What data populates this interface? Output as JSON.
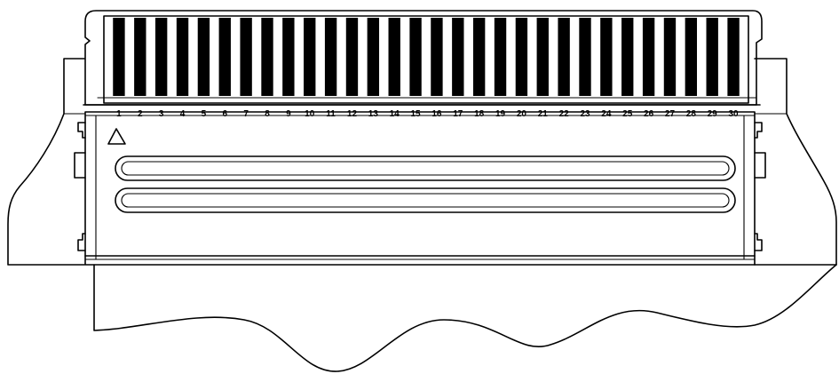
{
  "connector": {
    "pin_numbers": [
      "1",
      "2",
      "3",
      "4",
      "5",
      "6",
      "7",
      "8",
      "9",
      "10",
      "11",
      "12",
      "13",
      "14",
      "15",
      "16",
      "17",
      "18",
      "19",
      "20",
      "21",
      "22",
      "23",
      "24",
      "25",
      "26",
      "27",
      "28",
      "29",
      "30"
    ],
    "pin_count": 30,
    "pin1_marker": "triangle",
    "slot_count": 2,
    "colors": {
      "line": "#000000",
      "background": "#ffffff",
      "contact": "#000000"
    }
  }
}
